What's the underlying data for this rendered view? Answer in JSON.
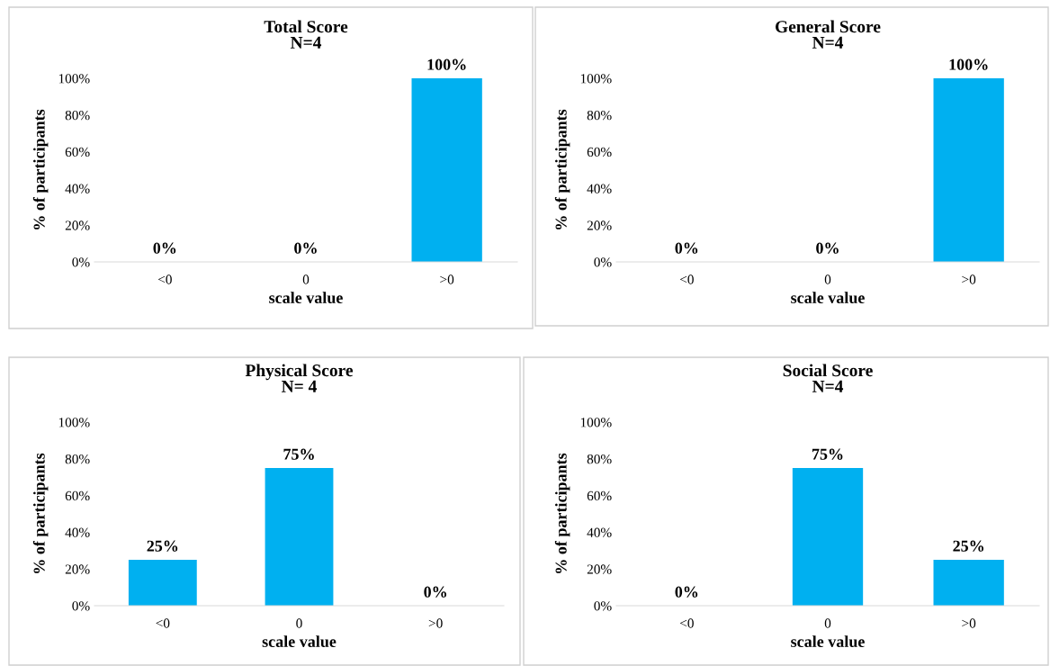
{
  "chart_data": [
    {
      "type": "bar",
      "title": "Total Score\nN=4",
      "xlabel": "scale value",
      "ylabel": "% of participants",
      "categories": [
        "<0",
        "0",
        ">0"
      ],
      "values": [
        0,
        0,
        100
      ],
      "value_labels": [
        "0%",
        "0%",
        "100%"
      ],
      "color": "#00b0f0",
      "ylim": [
        0,
        100
      ],
      "yticks": [
        {
          "value": 0,
          "label": "0%"
        },
        {
          "value": 20,
          "label": "20%"
        },
        {
          "value": 40,
          "label": "40%"
        },
        {
          "value": 60,
          "label": "60%"
        },
        {
          "value": 80,
          "label": "80%"
        },
        {
          "value": 100,
          "label": "100%"
        }
      ],
      "grid": false,
      "legend": false
    },
    {
      "type": "bar",
      "title": "General Score\nN=4",
      "xlabel": "scale value",
      "ylabel": "% of participants",
      "categories": [
        "<0",
        "0",
        ">0"
      ],
      "values": [
        0,
        0,
        100
      ],
      "value_labels": [
        "0%",
        "0%",
        "100%"
      ],
      "color": "#00b0f0",
      "ylim": [
        0,
        100
      ],
      "yticks": [
        {
          "value": 0,
          "label": "0%"
        },
        {
          "value": 20,
          "label": "20%"
        },
        {
          "value": 40,
          "label": "40%"
        },
        {
          "value": 60,
          "label": "60%"
        },
        {
          "value": 80,
          "label": "80%"
        },
        {
          "value": 100,
          "label": "100%"
        }
      ],
      "grid": false,
      "legend": false
    },
    {
      "type": "bar",
      "title": "Physical Score\nN= 4",
      "xlabel": "scale value",
      "ylabel": "% of participants",
      "categories": [
        "<0",
        "0",
        ">0"
      ],
      "values": [
        25,
        75,
        0
      ],
      "value_labels": [
        "25%",
        "75%",
        "0%"
      ],
      "color": "#00b0f0",
      "ylim": [
        0,
        100
      ],
      "yticks": [
        {
          "value": 0,
          "label": "0%"
        },
        {
          "value": 20,
          "label": "20%"
        },
        {
          "value": 40,
          "label": "40%"
        },
        {
          "value": 60,
          "label": "60%"
        },
        {
          "value": 80,
          "label": "80%"
        },
        {
          "value": 100,
          "label": "100%"
        }
      ],
      "grid": false,
      "legend": false
    },
    {
      "type": "bar",
      "title": "Social Score\nN=4",
      "xlabel": "scale value",
      "ylabel": "% of participants",
      "categories": [
        "<0",
        "0",
        ">0"
      ],
      "values": [
        0,
        75,
        25
      ],
      "value_labels": [
        "0%",
        "75%",
        "25%"
      ],
      "color": "#00b0f0",
      "ylim": [
        0,
        100
      ],
      "yticks": [
        {
          "value": 0,
          "label": "0%"
        },
        {
          "value": 20,
          "label": "20%"
        },
        {
          "value": 40,
          "label": "40%"
        },
        {
          "value": 60,
          "label": "60%"
        },
        {
          "value": 80,
          "label": "80%"
        },
        {
          "value": 100,
          "label": "100%"
        }
      ],
      "grid": false,
      "legend": false
    }
  ]
}
